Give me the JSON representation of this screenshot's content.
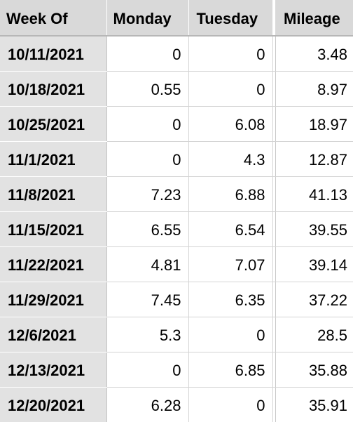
{
  "columns": {
    "week_of": "Week Of",
    "monday": "Monday",
    "tuesday": "Tuesday",
    "mileage": "Mileage"
  },
  "rows": [
    {
      "week_of": "10/11/2021",
      "monday": "0",
      "tuesday": "0",
      "mileage": "3.48"
    },
    {
      "week_of": "10/18/2021",
      "monday": "0.55",
      "tuesday": "0",
      "mileage": "8.97"
    },
    {
      "week_of": "10/25/2021",
      "monday": "0",
      "tuesday": "6.08",
      "mileage": "18.97"
    },
    {
      "week_of": "11/1/2021",
      "monday": "0",
      "tuesday": "4.3",
      "mileage": "12.87"
    },
    {
      "week_of": "11/8/2021",
      "monday": "7.23",
      "tuesday": "6.88",
      "mileage": "41.13"
    },
    {
      "week_of": "11/15/2021",
      "monday": "6.55",
      "tuesday": "6.54",
      "mileage": "39.55"
    },
    {
      "week_of": "11/22/2021",
      "monday": "4.81",
      "tuesday": "7.07",
      "mileage": "39.14"
    },
    {
      "week_of": "11/29/2021",
      "monday": "7.45",
      "tuesday": "6.35",
      "mileage": "37.22"
    },
    {
      "week_of": "12/6/2021",
      "monday": "5.3",
      "tuesday": "0",
      "mileage": "28.5"
    },
    {
      "week_of": "12/13/2021",
      "monday": "0",
      "tuesday": "6.85",
      "mileage": "35.88"
    },
    {
      "week_of": "12/20/2021",
      "monday": "6.28",
      "tuesday": "0",
      "mileage": "35.91"
    }
  ],
  "colors": {
    "header_bg": "#d9d9d9",
    "row_header_bg": "#e2e2e2",
    "gridline": "#d4d4d4"
  }
}
